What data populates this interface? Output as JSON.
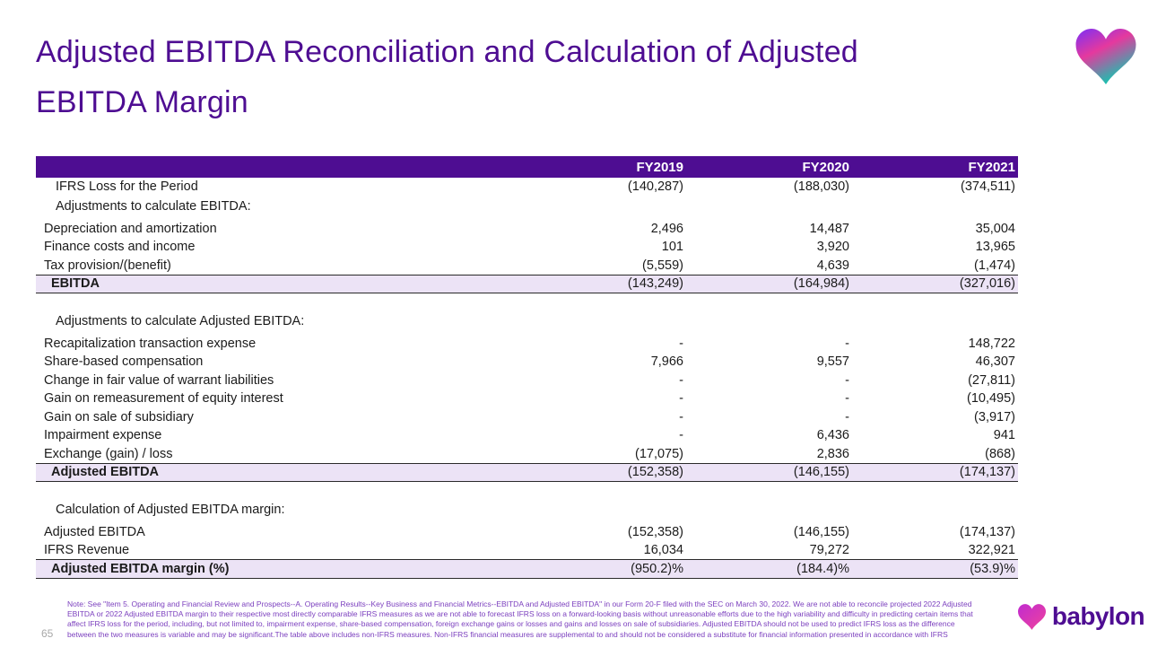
{
  "colors": {
    "brand_purple": "#4e0d92",
    "header_purple": "#4e0d92",
    "highlight_lavender": "#ece3f6",
    "footnote_purple": "#7b3fbe",
    "text_dark": "#1b1b1b"
  },
  "header": {
    "title_line1": "Adjusted EBITDA Reconciliation and Calculation of Adjusted",
    "title_line2": "EBITDA Margin"
  },
  "table": {
    "columns": [
      "FY2019",
      "FY2020",
      "FY2021"
    ],
    "rows": [
      {
        "type": "data",
        "level": 0,
        "label": "IFRS Loss for the Period",
        "values": [
          "(140,287)",
          "(188,030)",
          "(374,511)"
        ]
      },
      {
        "type": "section",
        "label": "Adjustments to calculate EBITDA:",
        "values": [
          "",
          "",
          ""
        ]
      },
      {
        "type": "data",
        "level": 1,
        "label": "Depreciation and amortization",
        "values": [
          "2,496",
          "14,487",
          "35,004"
        ]
      },
      {
        "type": "data",
        "level": 1,
        "label": "Finance costs and income",
        "values": [
          "101",
          "3,920",
          "13,965"
        ]
      },
      {
        "type": "data",
        "level": 1,
        "label": "Tax provision/(benefit)",
        "values": [
          "(5,559)",
          "4,639",
          "(1,474)"
        ]
      },
      {
        "type": "total",
        "label": "EBITDA",
        "values": [
          "(143,249)",
          "(164,984)",
          "(327,016)"
        ]
      },
      {
        "type": "spacer",
        "label": "",
        "values": [
          "",
          "",
          ""
        ]
      },
      {
        "type": "section",
        "label": "Adjustments to calculate Adjusted EBITDA:",
        "values": [
          "",
          "",
          ""
        ]
      },
      {
        "type": "data",
        "level": 1,
        "label": "Recapitalization transaction expense",
        "values": [
          "-",
          "-",
          "148,722"
        ]
      },
      {
        "type": "data",
        "level": 1,
        "label": "Share-based compensation",
        "values": [
          "7,966",
          "9,557",
          "46,307"
        ]
      },
      {
        "type": "data",
        "level": 1,
        "label": "Change in fair value of warrant liabilities",
        "values": [
          "-",
          "-",
          "(27,811)"
        ]
      },
      {
        "type": "data",
        "level": 1,
        "label": "Gain on remeasurement of equity interest",
        "values": [
          "-",
          "-",
          "(10,495)"
        ]
      },
      {
        "type": "data",
        "level": 1,
        "label": "Gain on sale of subsidiary",
        "values": [
          "-",
          "-",
          "(3,917)"
        ]
      },
      {
        "type": "data",
        "level": 1,
        "label": "Impairment expense",
        "values": [
          "-",
          "6,436",
          "941"
        ]
      },
      {
        "type": "data",
        "level": 1,
        "label": "Exchange (gain) / loss",
        "values": [
          "(17,075)",
          "2,836",
          "(868)"
        ]
      },
      {
        "type": "total",
        "label": "Adjusted EBITDA",
        "values": [
          "(152,358)",
          "(146,155)",
          "(174,137)"
        ]
      },
      {
        "type": "spacer",
        "label": "",
        "values": [
          "",
          "",
          ""
        ]
      },
      {
        "type": "section",
        "label": "Calculation of Adjusted EBITDA margin:",
        "values": [
          "",
          "",
          ""
        ]
      },
      {
        "type": "data",
        "level": 1,
        "label": "Adjusted EBITDA",
        "values": [
          "(152,358)",
          "(146,155)",
          "(174,137)"
        ]
      },
      {
        "type": "data",
        "level": 1,
        "label": "IFRS Revenue",
        "values": [
          "16,034",
          "79,272",
          "322,921"
        ]
      },
      {
        "type": "total",
        "label": "Adjusted EBITDA margin (%)",
        "values": [
          "(950.2)%",
          "(184.4)%",
          "(53.9)%"
        ]
      }
    ]
  },
  "footer": {
    "page_number": "65",
    "note": "Note: See \"Item 5. Operating and Financial Review and Prospects--A. Operating Results--Key Business and Financial Metrics--EBITDA and Adjusted EBITDA\" in our Form 20-F filed with the SEC on March 30, 2022. We are not able to reconcile projected 2022 Adjusted EBITDA or 2022 Adjusted EBITDA margin to their respective most directly comparable IFRS measures as we are not able to forecast IFRS loss on a forward-looking basis without unreasonable efforts due to the high variability and difficulty in predicting certain items that affect IFRS loss for the period, including, but not limited to, impairment expense, share-based compensation, foreign exchange gains or losses and gains and losses on sale of subsidiaries. Adjusted EBITDA should not be used to predict IFRS loss as the difference between the two measures is variable and may be significant.The table above includes non-IFRS measures. Non-IFRS financial measures are supplemental to and should not be considered a substitute for financial information presented in accordance with IFRS",
    "brand": "babylon"
  }
}
